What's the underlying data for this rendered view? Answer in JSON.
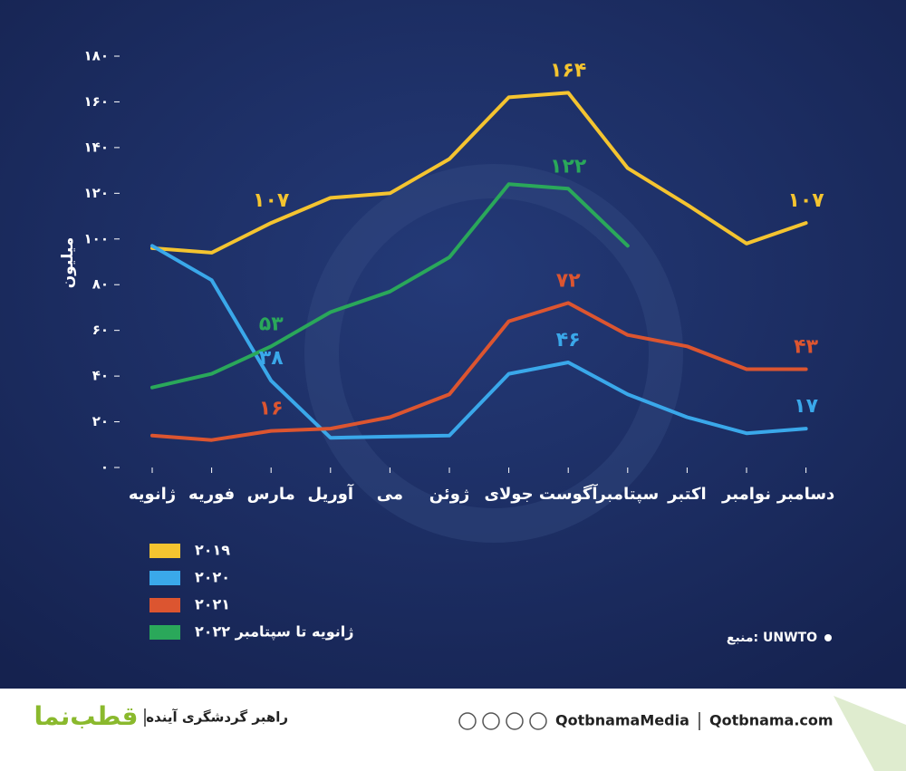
{
  "chart_data": {
    "type": "line",
    "y_label": "میلیون",
    "categories": [
      "ژانویه",
      "فوریه",
      "مارس",
      "آوریل",
      "می",
      "ژوئن",
      "جولای",
      "آگوست",
      "سپتامبر",
      "اکتبر",
      "نوامبر",
      "دسامبر"
    ],
    "series": [
      {
        "name": "۲۰۱۹",
        "color": "#f4c430",
        "values": [
          96,
          94,
          107,
          118,
          120,
          135,
          162,
          164,
          131,
          115,
          98,
          107
        ],
        "value_labels": [
          null,
          null,
          "۱۰۷",
          null,
          null,
          null,
          null,
          "۱۶۴",
          null,
          null,
          null,
          "۱۰۷"
        ]
      },
      {
        "name": "۲۰۲۰",
        "color": "#3aa8ea",
        "values": [
          97,
          82,
          38,
          13,
          13.5,
          14,
          41,
          46,
          32,
          22,
          15,
          17
        ],
        "value_labels": [
          null,
          null,
          "۳۸",
          null,
          null,
          null,
          null,
          "۴۶",
          null,
          null,
          null,
          "۱۷"
        ]
      },
      {
        "name": "۲۰۲۱",
        "color": "#dc5530",
        "values": [
          14,
          12,
          16,
          17,
          22,
          32,
          64,
          72,
          58,
          53,
          43,
          43
        ],
        "value_labels": [
          null,
          null,
          "۱۶",
          null,
          null,
          null,
          null,
          "۷۲",
          null,
          null,
          null,
          "۴۳"
        ]
      },
      {
        "name": "ژانویه تا سپتامبر ۲۰۲۲",
        "color": "#2aa85a",
        "values": [
          35,
          41,
          53,
          68,
          77,
          92,
          124,
          122,
          97,
          null,
          null,
          null
        ],
        "value_labels": [
          null,
          null,
          "۵۳",
          null,
          null,
          null,
          null,
          "۱۲۲",
          null,
          null,
          null,
          null
        ]
      }
    ],
    "ylim": [
      0,
      180
    ],
    "yticks": [
      {
        "value": 0,
        "label": "۰"
      },
      {
        "value": 20,
        "label": "۲۰"
      },
      {
        "value": 40,
        "label": "۴۰"
      },
      {
        "value": 60,
        "label": "۶۰"
      },
      {
        "value": 80,
        "label": "۸۰"
      },
      {
        "value": 100,
        "label": "۱۰۰"
      },
      {
        "value": 120,
        "label": "۱۲۰"
      },
      {
        "value": 140,
        "label": "۱۴۰"
      },
      {
        "value": 160,
        "label": "۱۶۰"
      },
      {
        "value": 180,
        "label": "۱۸۰"
      }
    ],
    "source": "منبع: UNWTO"
  },
  "footer": {
    "brand": "قطب‌نما",
    "tagline": "راهبر گردشگری آینده",
    "handle": "QotbnamaMedia",
    "website": "Qotbnama.com"
  }
}
